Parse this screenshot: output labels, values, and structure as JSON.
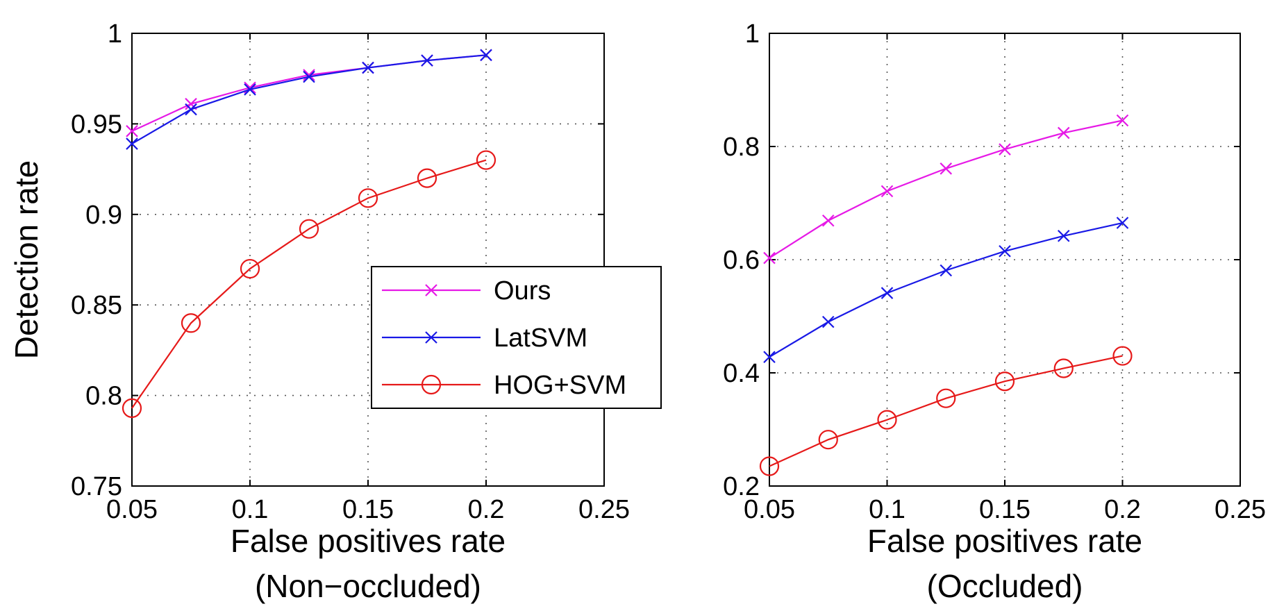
{
  "chart_data": [
    {
      "type": "line",
      "title": "",
      "xlabel": "False positives rate",
      "xlabel2": "(Non−occluded)",
      "ylabel": "Detection rate",
      "xlim": [
        0.05,
        0.25
      ],
      "ylim": [
        0.75,
        1
      ],
      "xticks": [
        0.05,
        0.1,
        0.15,
        0.2,
        0.25
      ],
      "xtick_labels": [
        "0.05",
        "0.1",
        "0.15",
        "0.2",
        "0.25"
      ],
      "yticks": [
        0.75,
        0.8,
        0.85,
        0.9,
        0.95,
        1
      ],
      "ytick_labels": [
        "0.75",
        "0.8",
        "0.85",
        "0.9",
        "0.95",
        "1"
      ],
      "grid": true,
      "legend": "center-right",
      "x": [
        0.05,
        0.075,
        0.1,
        0.125,
        0.15,
        0.175,
        0.2
      ],
      "series": [
        {
          "name": "Ours",
          "color": "#e619e6",
          "marker": "x",
          "values": [
            0.946,
            0.961,
            0.97,
            0.977,
            0.981,
            0.985,
            0.988
          ]
        },
        {
          "name": "LatSVM",
          "color": "#1919e6",
          "marker": "x",
          "values": [
            0.939,
            0.958,
            0.969,
            0.976,
            0.981,
            0.985,
            0.988
          ]
        },
        {
          "name": "HOG+SVM",
          "color": "#e61919",
          "marker": "o",
          "values": [
            0.793,
            0.84,
            0.87,
            0.892,
            0.909,
            0.92,
            0.93
          ]
        }
      ]
    },
    {
      "type": "line",
      "title": "",
      "xlabel": "False positives rate",
      "xlabel2": "(Occluded)",
      "ylabel": "",
      "xlim": [
        0.05,
        0.25
      ],
      "ylim": [
        0.2,
        1
      ],
      "xticks": [
        0.05,
        0.1,
        0.15,
        0.2,
        0.25
      ],
      "xtick_labels": [
        "0.05",
        "0.1",
        "0.15",
        "0.2",
        "0.25"
      ],
      "yticks": [
        0.2,
        0.4,
        0.6,
        0.8,
        1
      ],
      "ytick_labels": [
        "0.2",
        "0.4",
        "0.6",
        "0.8",
        "1"
      ],
      "grid": true,
      "legend": "none",
      "x": [
        0.05,
        0.075,
        0.1,
        0.125,
        0.15,
        0.175,
        0.2
      ],
      "series": [
        {
          "name": "Ours",
          "color": "#e619e6",
          "marker": "x",
          "values": [
            0.603,
            0.669,
            0.721,
            0.761,
            0.795,
            0.824,
            0.846
          ]
        },
        {
          "name": "LatSVM",
          "color": "#1919e6",
          "marker": "x",
          "values": [
            0.428,
            0.49,
            0.541,
            0.581,
            0.615,
            0.642,
            0.665
          ]
        },
        {
          "name": "HOG+SVM",
          "color": "#e61919",
          "marker": "o",
          "values": [
            0.235,
            0.282,
            0.317,
            0.355,
            0.385,
            0.408,
            0.43
          ]
        }
      ]
    }
  ]
}
